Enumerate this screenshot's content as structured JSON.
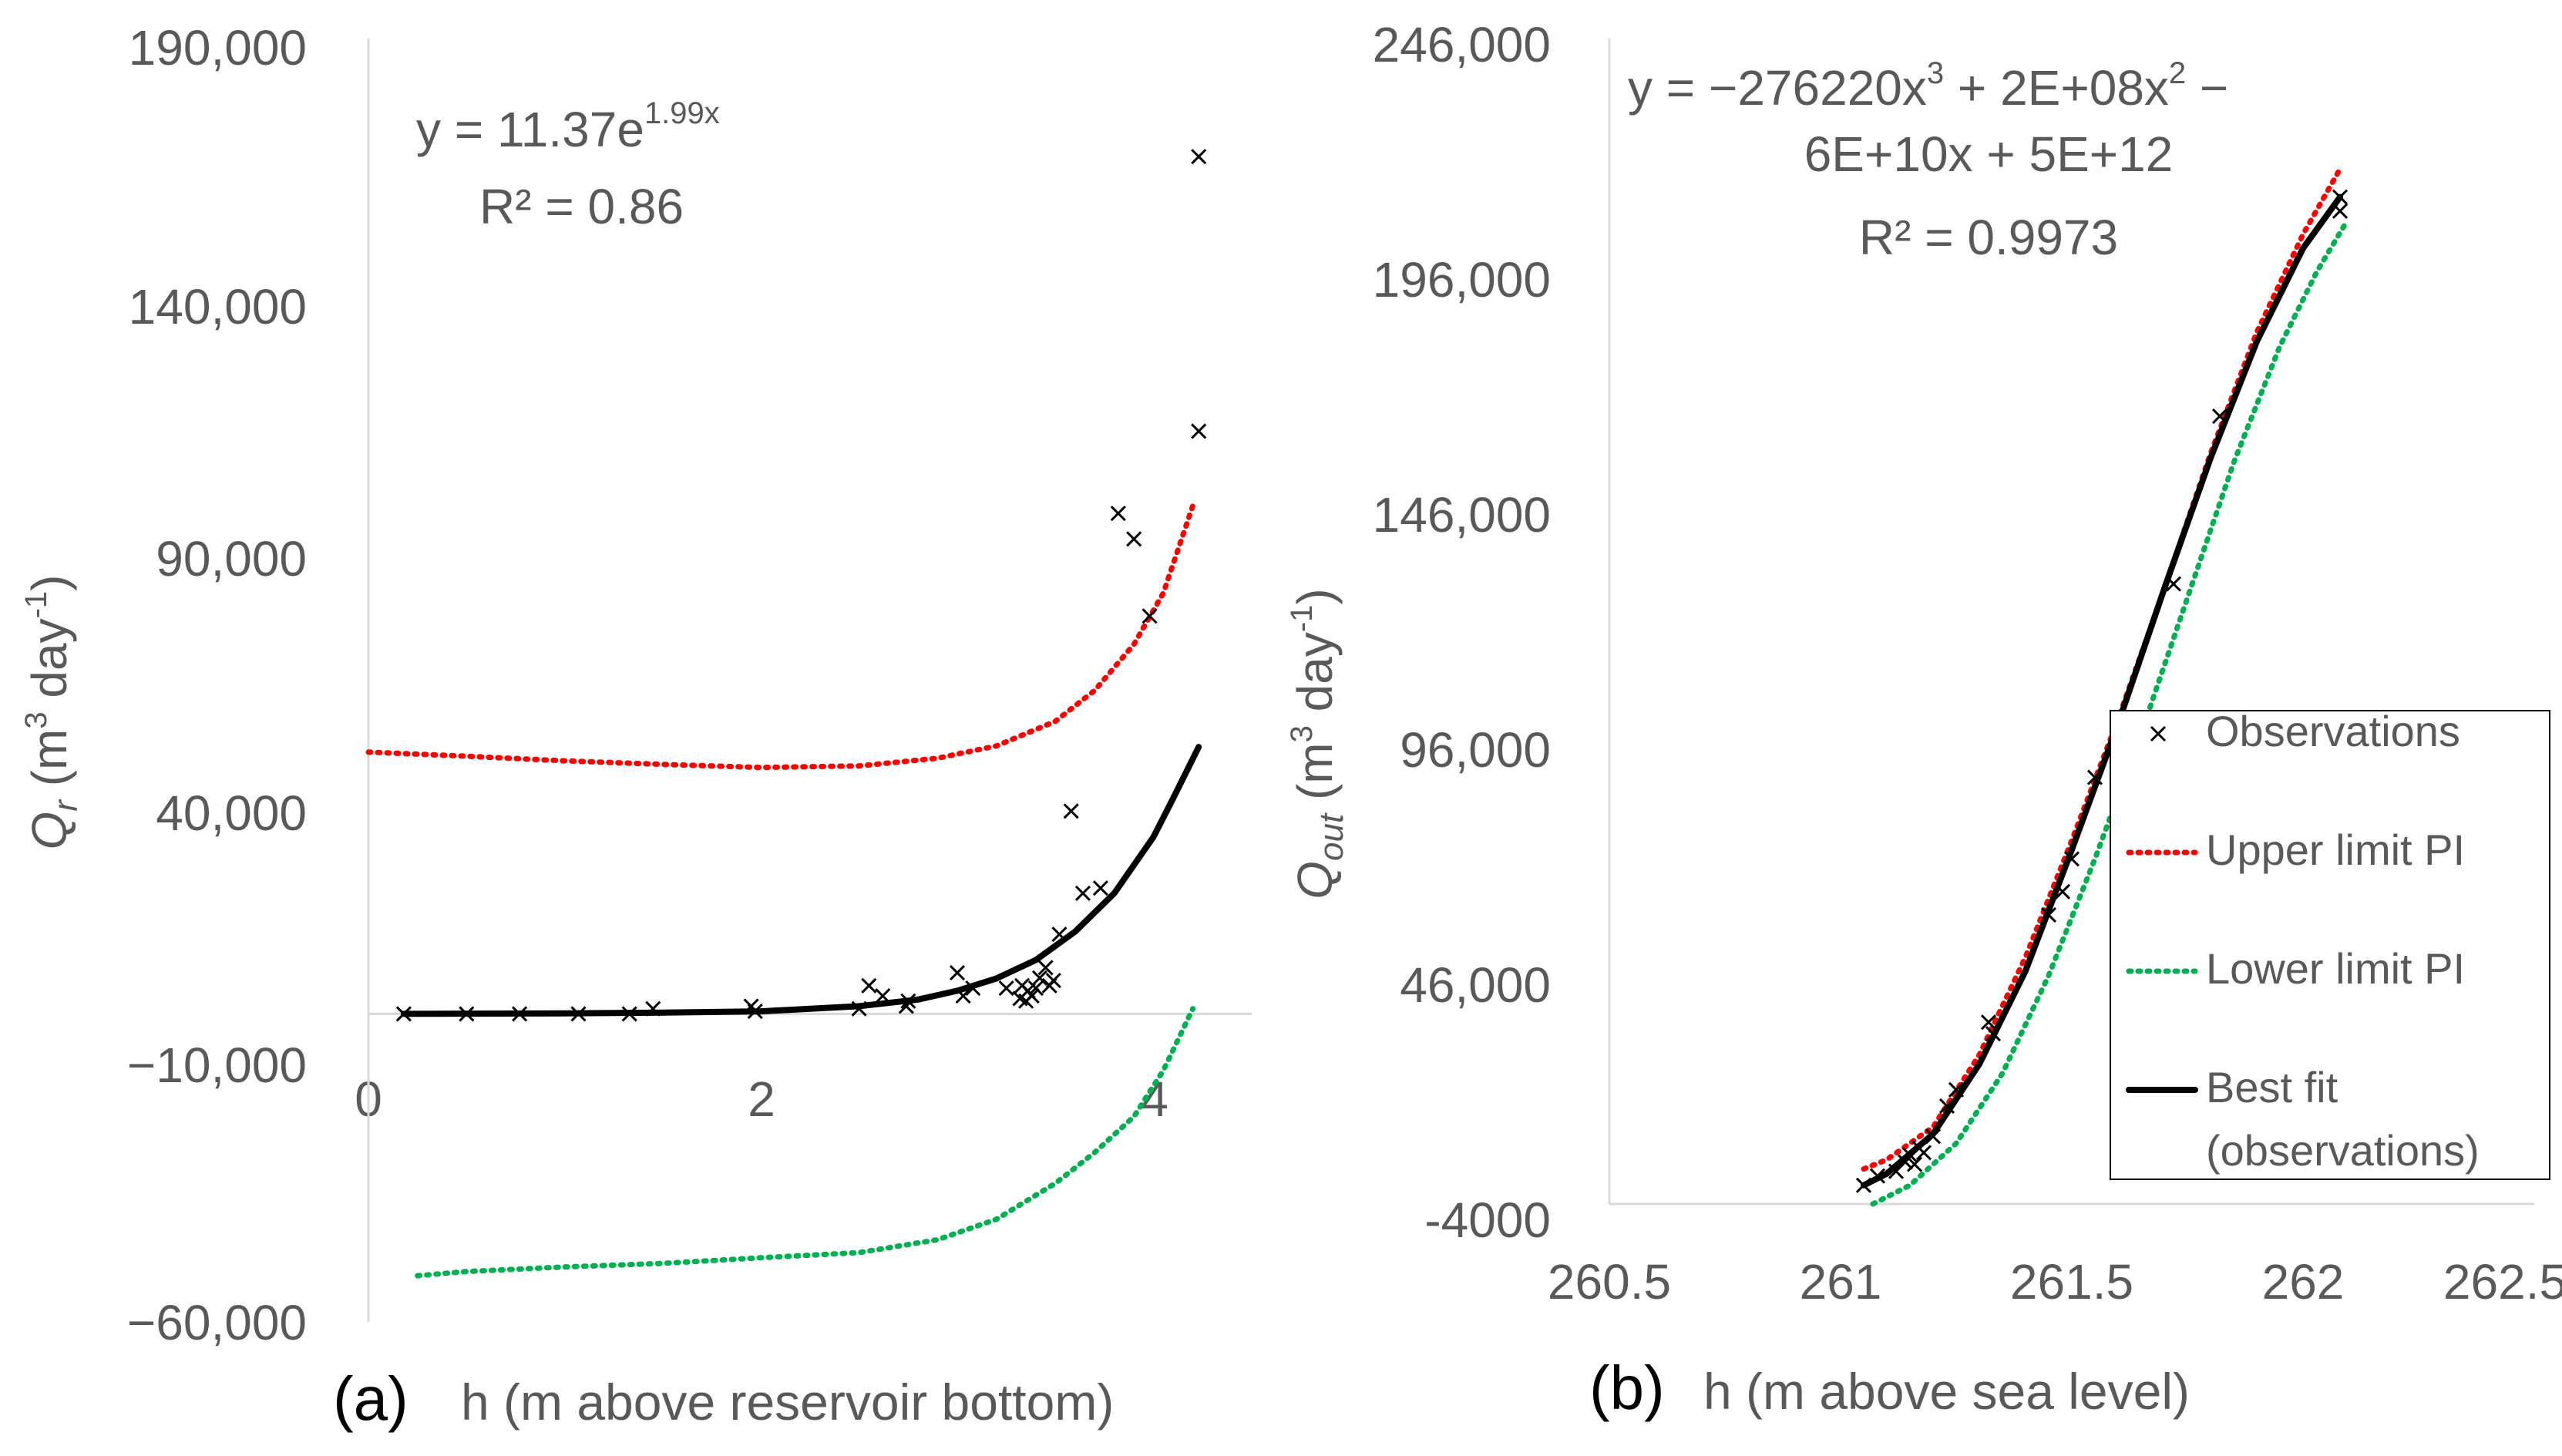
{
  "chart_data": [
    {
      "type": "scatter",
      "panel_label": "(a)",
      "xlabel": "h (m above reservoir bottom)",
      "ylabel": {
        "main": "Q",
        "sub": "r",
        "paren_open": " (m",
        "sup3": "3",
        "mid": "  day",
        "supneg1": "-1",
        "paren_close": ")"
      },
      "xlim": [
        0,
        4.5
      ],
      "ylim": [
        -60000,
        190000
      ],
      "x_ticks": [
        "0",
        "2",
        "4"
      ],
      "x_tick_values": [
        0,
        2,
        4
      ],
      "y_ticks": [
        "190,000",
        "140,000",
        "90,000",
        "40,000",
        "−10,000",
        "−60,000"
      ],
      "y_tick_values": [
        190000,
        140000,
        90000,
        40000,
        -10000,
        -60000
      ],
      "equation": {
        "base": "y = 11.37e",
        "exp": "1.99x",
        "r2": "R² = 0.86"
      },
      "series": [
        {
          "name": "Observations",
          "marker": "x",
          "color": "#000000",
          "points": [
            [
              0.18,
              0
            ],
            [
              0.5,
              0
            ],
            [
              0.77,
              0
            ],
            [
              1.07,
              0
            ],
            [
              1.33,
              0
            ],
            [
              1.45,
              1000
            ],
            [
              1.95,
              1500
            ],
            [
              1.97,
              500
            ],
            [
              2.5,
              1000
            ],
            [
              2.55,
              5500
            ],
            [
              2.62,
              3500
            ],
            [
              2.74,
              1500
            ],
            [
              2.75,
              2500
            ],
            [
              3.0,
              8000
            ],
            [
              3.03,
              3500
            ],
            [
              3.08,
              5000
            ],
            [
              3.25,
              5000
            ],
            [
              3.32,
              3000
            ],
            [
              3.33,
              5500
            ],
            [
              3.35,
              2500
            ],
            [
              3.36,
              4500
            ],
            [
              3.38,
              3500
            ],
            [
              3.4,
              5000
            ],
            [
              3.42,
              7000
            ],
            [
              3.45,
              9000
            ],
            [
              3.47,
              5500
            ],
            [
              3.49,
              6500
            ],
            [
              3.52,
              15500
            ],
            [
              3.58,
              39500
            ],
            [
              3.64,
              23500
            ],
            [
              3.73,
              24500
            ],
            [
              3.82,
              97500
            ],
            [
              3.9,
              92500
            ],
            [
              3.98,
              77500
            ],
            [
              4.23,
              113500
            ],
            [
              4.23,
              167000
            ]
          ]
        },
        {
          "name": "Upper limit PI",
          "style": "dotted",
          "color": "#ff0000",
          "points": [
            [
              0,
              51000
            ],
            [
              0.5,
              50200
            ],
            [
              1,
              49300
            ],
            [
              1.5,
              48600
            ],
            [
              2,
              48000
            ],
            [
              2.5,
              48300
            ],
            [
              2.9,
              49800
            ],
            [
              3.2,
              52200
            ],
            [
              3.5,
              57000
            ],
            [
              3.7,
              63000
            ],
            [
              3.9,
              72000
            ],
            [
              4.05,
              82000
            ],
            [
              4.2,
              99000
            ]
          ]
        },
        {
          "name": "Lower limit PI",
          "style": "dotted",
          "color": "#00b050",
          "points": [
            [
              0.25,
              -51000
            ],
            [
              0.5,
              -50200
            ],
            [
              1,
              -49300
            ],
            [
              1.5,
              -48600
            ],
            [
              2,
              -47500
            ],
            [
              2.5,
              -46500
            ],
            [
              2.9,
              -44000
            ],
            [
              3.2,
              -40000
            ],
            [
              3.5,
              -33000
            ],
            [
              3.7,
              -27000
            ],
            [
              3.9,
              -20000
            ],
            [
              4.05,
              -11000
            ],
            [
              4.2,
              1000
            ]
          ]
        },
        {
          "name": "Best fit (observations)",
          "style": "solid",
          "color": "#000000",
          "points": [
            [
              0.18,
              0
            ],
            [
              1,
              100
            ],
            [
              1.5,
              250
            ],
            [
              2,
              500
            ],
            [
              2.5,
              1500
            ],
            [
              2.8,
              2800
            ],
            [
              3.0,
              4500
            ],
            [
              3.2,
              6900
            ],
            [
              3.4,
              10500
            ],
            [
              3.6,
              16000
            ],
            [
              3.8,
              23500
            ],
            [
              4.0,
              34500
            ],
            [
              4.1,
              42000
            ],
            [
              4.23,
              52000
            ]
          ]
        }
      ]
    },
    {
      "type": "scatter",
      "panel_label": "(b)",
      "xlabel": "h (m above sea level)",
      "ylabel": {
        "main": "Q",
        "sub": "out",
        "paren_open": " (m",
        "sup3": "3",
        "mid": " day",
        "supneg1": "-1",
        "paren_close": ")"
      },
      "xlim": [
        260.5,
        262.5
      ],
      "ylim": [
        -4000,
        246000
      ],
      "x_ticks": [
        "260.5",
        "261",
        "261.5",
        "262",
        "262.5"
      ],
      "x_tick_values": [
        260.5,
        261,
        261.5,
        262,
        262.5
      ],
      "y_ticks": [
        "246,000",
        "196,000",
        "146,000",
        "96,000",
        "46,000",
        "-4000"
      ],
      "y_tick_values": [
        246000,
        196000,
        146000,
        96000,
        46000,
        -4000
      ],
      "equation": {
        "line1_a": "y = −276220x",
        "line1_sup1": "3",
        "line1_b": " + 2E+08x",
        "line1_sup2": "2",
        "line1_c": " −",
        "line2": "6E+10x + 5E+12",
        "r2": "R² = 0.9973"
      },
      "series": [
        {
          "name": "Observations",
          "marker": "x",
          "color": "#000000",
          "points": [
            [
              261.05,
              0
            ],
            [
              261.08,
              2000
            ],
            [
              261.12,
              3000
            ],
            [
              261.14,
              5000
            ],
            [
              261.15,
              6500
            ],
            [
              261.16,
              4500
            ],
            [
              261.17,
              8000
            ],
            [
              261.18,
              7000
            ],
            [
              261.2,
              10500
            ],
            [
              261.23,
              17000
            ],
            [
              261.25,
              20500
            ],
            [
              261.32,
              35000
            ],
            [
              261.33,
              32500
            ],
            [
              261.45,
              58000
            ],
            [
              261.48,
              63000
            ],
            [
              261.5,
              70000
            ],
            [
              261.55,
              87500
            ],
            [
              261.72,
              129000
            ],
            [
              261.82,
              165000
            ],
            [
              262.08,
              209000
            ],
            [
              262.08,
              212000
            ]
          ]
        },
        {
          "name": "Upper limit PI",
          "style": "dotted",
          "color": "#ff0000",
          "points": [
            [
              261.05,
              3500
            ],
            [
              261.1,
              5500
            ],
            [
              261.2,
              12500
            ],
            [
              261.3,
              28000
            ],
            [
              261.4,
              49000
            ],
            [
              261.5,
              74000
            ],
            [
              261.6,
              100000
            ],
            [
              261.7,
              128000
            ],
            [
              261.8,
              157000
            ],
            [
              261.9,
              183000
            ],
            [
              262.0,
              204000
            ],
            [
              262.08,
              218000
            ]
          ]
        },
        {
          "name": "Lower limit PI",
          "style": "dotted",
          "color": "#00b050",
          "points": [
            [
              261.07,
              -4000
            ],
            [
              261.15,
              0
            ],
            [
              261.25,
              9000
            ],
            [
              261.35,
              24000
            ],
            [
              261.45,
              45000
            ],
            [
              261.55,
              70000
            ],
            [
              261.65,
              97000
            ],
            [
              261.75,
              126000
            ],
            [
              261.85,
              155000
            ],
            [
              261.95,
              180000
            ],
            [
              262.03,
              196000
            ],
            [
              262.09,
              206000
            ]
          ]
        },
        {
          "name": "Best fit (observations)",
          "style": "solid",
          "color": "#000000",
          "points": [
            [
              261.05,
              0
            ],
            [
              261.1,
              2500
            ],
            [
              261.2,
              11000
            ],
            [
              261.3,
              26000
            ],
            [
              261.4,
              46000
            ],
            [
              261.5,
              72000
            ],
            [
              261.6,
              99000
            ],
            [
              261.7,
              128000
            ],
            [
              261.8,
              156000
            ],
            [
              261.9,
              181000
            ],
            [
              262.0,
              201000
            ],
            [
              262.08,
              212000
            ]
          ]
        }
      ],
      "legend": {
        "position": "right",
        "items": [
          {
            "type": "marker",
            "marker": "x",
            "color": "#000000",
            "label1": "Observations"
          },
          {
            "type": "dotted",
            "color": "#ff0000",
            "label1": "Upper limit PI"
          },
          {
            "type": "dotted",
            "color": "#00b050",
            "label1": "Lower limit PI"
          },
          {
            "type": "solid",
            "color": "#000000",
            "label1": "Best fit",
            "label2": "(observations)"
          }
        ]
      }
    }
  ]
}
